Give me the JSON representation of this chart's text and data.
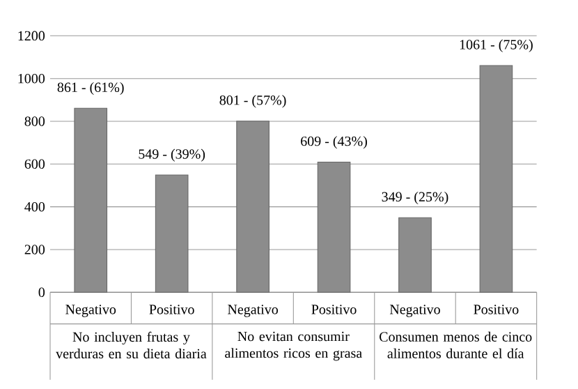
{
  "chart_data": {
    "type": "bar",
    "categories": [
      "Negativo",
      "Positivo",
      "Negativo",
      "Positivo",
      "Negativo",
      "Positivo"
    ],
    "values": [
      861,
      549,
      801,
      609,
      349,
      1061
    ],
    "value_labels": [
      "861 - (61%)",
      "549 - (39%)",
      "801 - (57%)",
      "609 - (43%)",
      "349 - (25%)",
      "1061 - (75%)"
    ],
    "color": "#8c8c8c",
    "ylim": [
      0,
      1200
    ],
    "yticks": [
      0,
      200,
      400,
      600,
      800,
      1000,
      1200
    ],
    "grid": "y",
    "annotations": [
      "No incluyen frutas y verduras en su dieta diaria",
      "No evitan consumir alimentos ricos en grasa",
      "Consumen menos de cinco alimentos durante el día"
    ]
  }
}
